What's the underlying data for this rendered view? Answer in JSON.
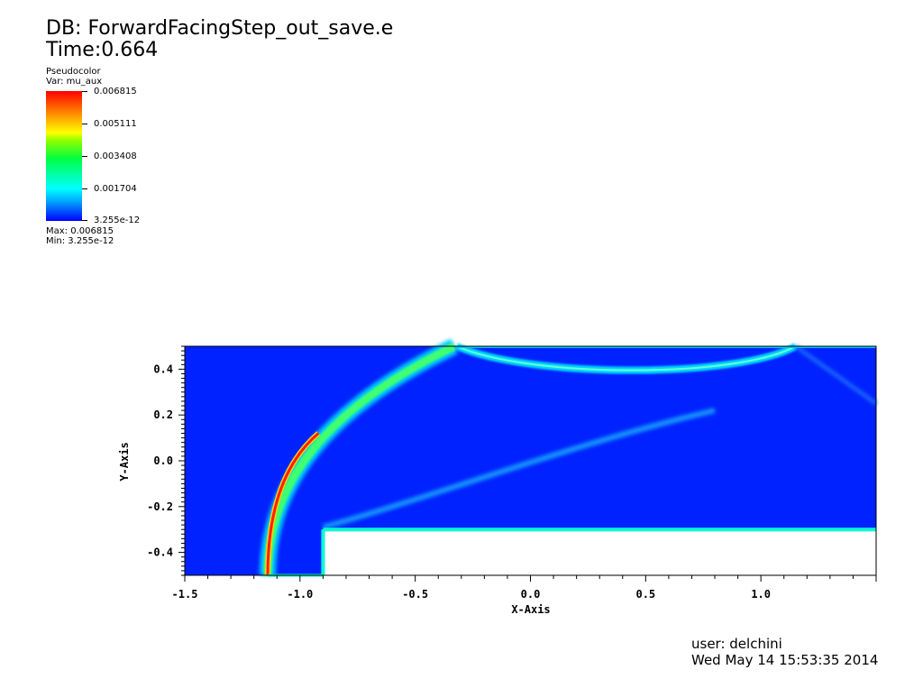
{
  "header": {
    "db": "DB: ForwardFacingStep_out_save.e",
    "time": "Time:0.664"
  },
  "legend": {
    "plot_type": "Pseudocolor",
    "var": "Var: mu_aux",
    "ticks": [
      "0.006815",
      "0.005111",
      "0.003408",
      "0.001704",
      "3.255e-12"
    ],
    "max": "Max:  0.006815",
    "min": "Min:  3.255e-12"
  },
  "footer": {
    "user": "user: delchini",
    "date": "Wed May 14 15:53:35 2014"
  },
  "colors": {
    "background_field": "#0022ff",
    "step": "#ffffff",
    "shock_core": "#ff2000"
  },
  "chart_data": {
    "type": "heatmap",
    "title": "",
    "xlabel": "X-Axis",
    "ylabel": "Y-Axis",
    "xlim": [
      -1.5,
      1.5
    ],
    "ylim": [
      -0.5,
      0.5
    ],
    "xticks": [
      "-1.5",
      "-1.0",
      "-0.5",
      "0.0",
      "0.5",
      "1.0"
    ],
    "yticks": [
      "0.4",
      "0.2",
      "0.0",
      "-0.2",
      "-0.4"
    ],
    "xtick_values": [
      -1.5,
      -1.0,
      -0.5,
      0.0,
      0.5,
      1.0
    ],
    "ytick_values": [
      0.4,
      0.2,
      0.0,
      -0.2,
      -0.4
    ],
    "step": {
      "x_start": -0.9,
      "y_top": -0.3
    },
    "variable": "mu_aux",
    "value_range": [
      3.255e-12,
      0.006815
    ]
  }
}
